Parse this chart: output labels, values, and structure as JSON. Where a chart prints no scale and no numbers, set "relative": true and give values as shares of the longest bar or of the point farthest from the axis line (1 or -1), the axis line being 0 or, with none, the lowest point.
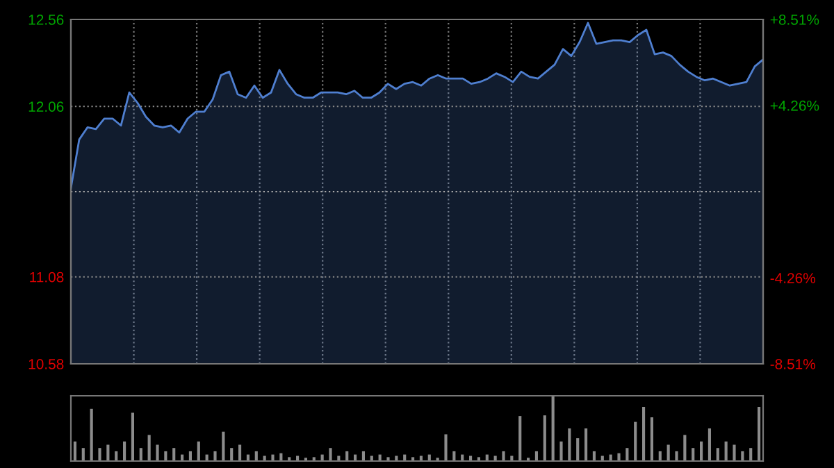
{
  "chart_data": [
    {
      "type": "area",
      "categories": [
        null,
        null,
        null,
        null,
        null,
        null,
        null,
        null,
        null,
        null,
        null,
        null,
        null,
        null,
        null,
        null,
        null,
        null,
        null,
        null,
        null,
        null,
        null,
        null,
        null,
        null,
        null,
        null,
        null,
        null,
        null,
        null,
        null,
        null,
        null,
        null,
        null,
        null,
        null,
        null,
        null,
        null,
        null,
        null,
        null,
        null,
        null,
        null,
        null,
        null,
        null,
        null,
        null,
        null,
        null,
        null,
        null,
        null,
        null,
        null,
        null,
        null,
        null,
        null,
        null,
        null,
        null,
        null,
        null,
        null,
        null,
        null,
        null,
        null,
        null,
        null,
        null,
        null,
        null,
        null,
        null,
        null,
        null,
        null
      ],
      "series": [
        {
          "color": "#4f7fd0",
          "values": [
            11.59,
            11.87,
            11.94,
            11.93,
            11.99,
            11.99,
            11.95,
            12.14,
            12.08,
            12.0,
            11.95,
            11.94,
            11.95,
            11.91,
            11.99,
            12.03,
            12.03,
            12.1,
            12.24,
            12.26,
            12.13,
            12.11,
            12.18,
            12.11,
            12.14,
            12.27,
            12.19,
            12.13,
            12.11,
            12.11,
            12.14,
            12.14,
            12.14,
            12.13,
            12.15,
            12.11,
            12.11,
            12.14,
            12.19,
            12.16,
            12.19,
            12.2,
            12.18,
            12.22,
            12.24,
            12.22,
            12.22,
            12.22,
            12.19,
            12.2,
            12.22,
            12.25,
            12.23,
            12.2,
            12.26,
            12.23,
            12.22,
            12.26,
            12.3,
            12.39,
            12.35,
            12.43,
            12.54,
            12.42,
            12.43,
            12.44,
            12.44,
            12.43,
            12.47,
            12.5,
            12.36,
            12.37,
            12.35,
            12.3,
            12.26,
            12.23,
            12.21,
            12.22,
            12.2,
            12.18,
            12.19,
            12.2,
            12.29,
            12.33
          ]
        }
      ],
      "ylim": [
        10.58,
        12.56
      ],
      "yticks": [
        12.56,
        12.06,
        11.08,
        10.58
      ],
      "y2lim": [
        -8.51,
        8.51
      ],
      "y2ticks": [
        {
          "value": 8.51,
          "label": "+8.51%"
        },
        {
          "value": 4.26,
          "label": "+4.26%"
        },
        {
          "value": -4.26,
          "label": "-4.26%"
        },
        {
          "value": -8.51,
          "label": "-8.51%"
        }
      ],
      "ref_lines": [
        {
          "axis": "y",
          "value": 11.57,
          "line_style": "dotted"
        }
      ],
      "grid": true
    },
    {
      "type": "bar",
      "relative": true,
      "color": "#8c8c8c",
      "categories": [
        null,
        null,
        null,
        null,
        null,
        null,
        null,
        null,
        null,
        null,
        null,
        null,
        null,
        null,
        null,
        null,
        null,
        null,
        null,
        null,
        null,
        null,
        null,
        null,
        null,
        null,
        null,
        null,
        null,
        null,
        null,
        null,
        null,
        null,
        null,
        null,
        null,
        null,
        null,
        null,
        null,
        null,
        null,
        null,
        null,
        null,
        null,
        null,
        null,
        null,
        null,
        null,
        null,
        null,
        null,
        null,
        null,
        null,
        null,
        null,
        null,
        null,
        null,
        null,
        null,
        null,
        null,
        null,
        null,
        null,
        null,
        null,
        null,
        null,
        null,
        null,
        null,
        null,
        null,
        null,
        null,
        null,
        null,
        null
      ],
      "values": [
        0.3,
        0.2,
        0.8,
        0.2,
        0.25,
        0.15,
        0.3,
        0.74,
        0.2,
        0.4,
        0.25,
        0.15,
        0.2,
        0.1,
        0.15,
        0.3,
        0.1,
        0.15,
        0.45,
        0.2,
        0.25,
        0.1,
        0.15,
        0.08,
        0.1,
        0.12,
        0.06,
        0.08,
        0.05,
        0.06,
        0.1,
        0.2,
        0.08,
        0.15,
        0.1,
        0.15,
        0.08,
        0.1,
        0.06,
        0.08,
        0.1,
        0.06,
        0.08,
        0.1,
        0.05,
        0.41,
        0.15,
        0.1,
        0.08,
        0.06,
        0.1,
        0.08,
        0.15,
        0.08,
        0.69,
        0.05,
        0.15,
        0.7,
        1,
        0.3,
        0.5,
        0.35,
        0.5,
        0.15,
        0.08,
        0.1,
        0.12,
        0.2,
        0.6,
        0.83,
        0.67,
        0.15,
        0.25,
        0.15,
        0.4,
        0.2,
        0.3,
        0.5,
        0.2,
        0.3,
        0.25,
        0.15,
        0.2,
        0.83
      ]
    }
  ]
}
